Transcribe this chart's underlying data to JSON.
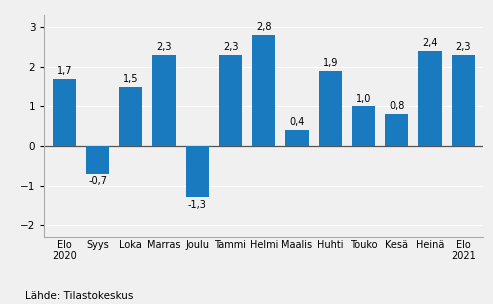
{
  "categories": [
    "Elo\n2020",
    "Syys",
    "Loka",
    "Marras",
    "Joulu",
    "Tammi",
    "Helmi",
    "Maalis",
    "Huhti",
    "Touko",
    "Kesä",
    "Heinä",
    "Elo\n2021"
  ],
  "values": [
    1.7,
    -0.7,
    1.5,
    2.3,
    -1.3,
    2.3,
    2.8,
    0.4,
    1.9,
    1.0,
    0.8,
    2.4,
    2.3
  ],
  "bar_color": "#1a7abf",
  "ylim": [
    -2.3,
    3.3
  ],
  "yticks": [
    -2,
    -1,
    0,
    1,
    2,
    3
  ],
  "source_text": "Lähde: Tilastokeskus",
  "background_color": "#f0f0f0",
  "grid_color": "#ffffff",
  "value_labels": [
    "1,7",
    "-0,7",
    "1,5",
    "2,3",
    "-1,3",
    "2,3",
    "2,8",
    "0,4",
    "1,9",
    "1,0",
    "0,8",
    "2,4",
    "2,3"
  ]
}
